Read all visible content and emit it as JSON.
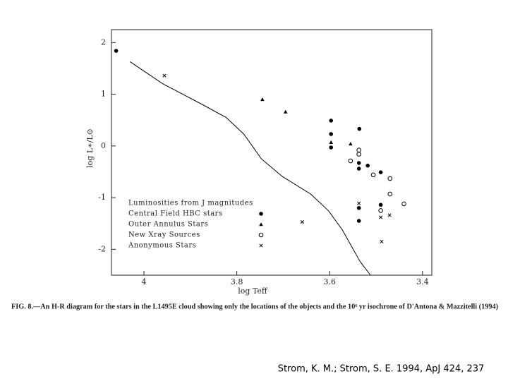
{
  "chart_data": {
    "type": "scatter",
    "xlabel": "log Teff",
    "ylabel": "log L∗/L⊙",
    "xlim": [
      4.07,
      3.38
    ],
    "ylim": [
      -2.5,
      2.25
    ],
    "xticks": [
      4,
      3.8,
      3.6,
      3.4
    ],
    "yticks": [
      2,
      1,
      0,
      -1,
      -2
    ],
    "legend_title": "Luminosities from J magnitudes",
    "legend": "lower left",
    "series": [
      {
        "name": "Central Field HBC stars",
        "marker": "circle-filled",
        "color": "#000000",
        "x": [
          4.06,
          3.597,
          3.597,
          3.597,
          3.536,
          3.537,
          3.537,
          3.518,
          3.49,
          3.49,
          3.537,
          3.537
        ],
        "y": [
          1.84,
          0.49,
          0.23,
          -0.03,
          0.33,
          -0.33,
          -0.44,
          -0.38,
          -0.51,
          -1.14,
          -1.2,
          -1.45
        ]
      },
      {
        "name": "Outer Annulus Stars",
        "marker": "triangle",
        "color": "#000000",
        "x": [
          3.745,
          3.695,
          3.597,
          3.555
        ],
        "y": [
          0.9,
          0.66,
          0.07,
          0.04
        ]
      },
      {
        "name": "New Xray Sources",
        "marker": "circle-open",
        "color": "#000000",
        "x": [
          3.555,
          3.537,
          3.537,
          3.506,
          3.47,
          3.47,
          3.44,
          3.49
        ],
        "y": [
          -0.29,
          -0.08,
          -0.16,
          -0.56,
          -0.63,
          -0.93,
          -1.12,
          -1.25
        ]
      },
      {
        "name": "Anonymous Stars",
        "marker": "x",
        "color": "#000000",
        "x": [
          3.956,
          3.659,
          3.537,
          3.49,
          3.471,
          3.488
        ],
        "y": [
          1.36,
          -1.47,
          -1.11,
          -1.38,
          -1.34,
          -1.85
        ]
      }
    ],
    "isochrone": {
      "color": "#000000",
      "x": [
        4.03,
        3.959,
        3.876,
        3.823,
        3.785,
        3.747,
        3.702,
        3.641,
        3.603,
        3.573,
        3.535,
        3.512
      ],
      "y": [
        1.63,
        1.2,
        0.81,
        0.55,
        0.23,
        -0.25,
        -0.59,
        -0.93,
        -1.25,
        -1.62,
        -2.23,
        -2.5
      ]
    },
    "caption": "FIG. 8.—An H-R diagram for the stars in the L1495E cloud showing only the locations of the objects and the 10⁶ yr isochrone of D'Antona & Mazzitelli (1994)"
  },
  "citation": "Strom, K. M.; Strom, S. E. 1994, ApJ 424, 237"
}
